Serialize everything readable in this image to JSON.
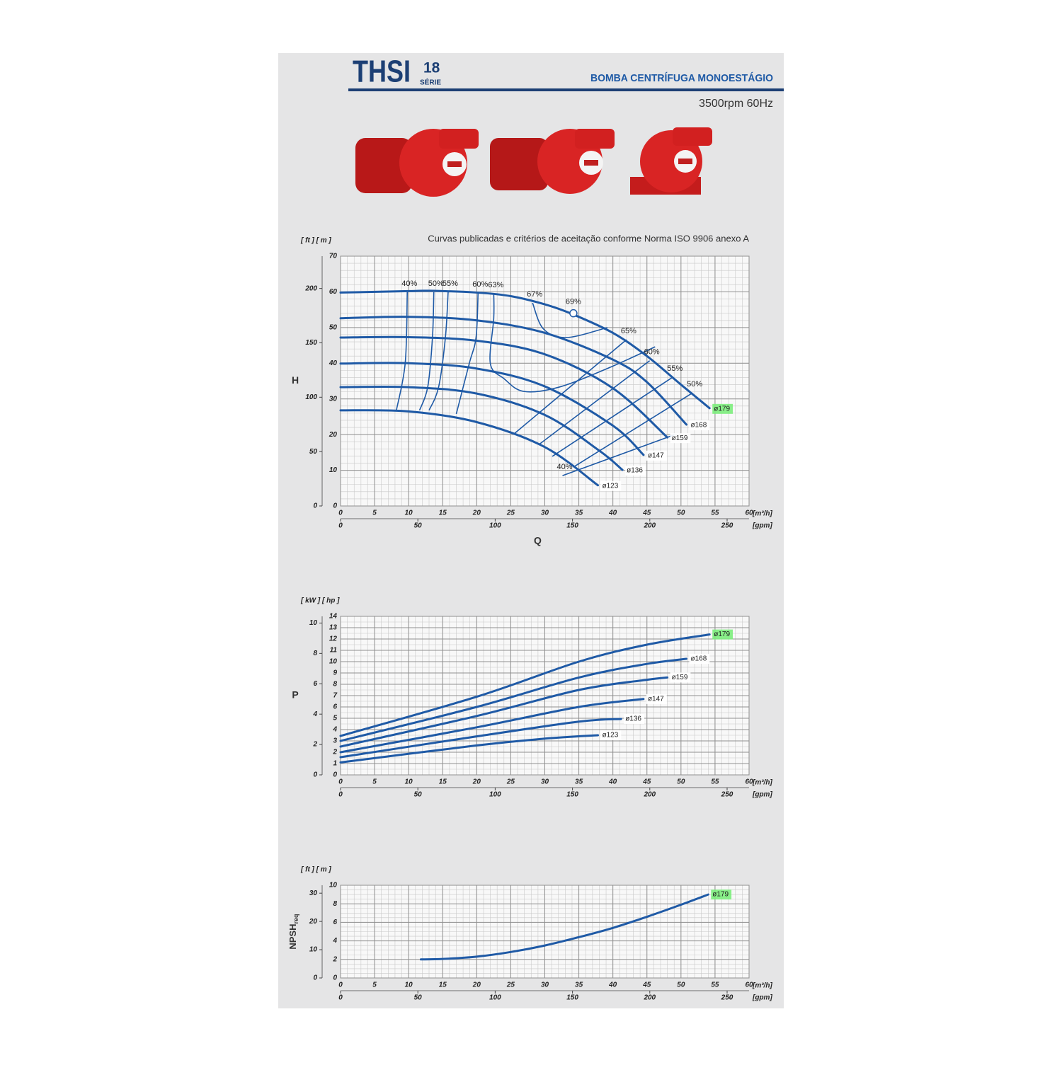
{
  "header": {
    "title": "THSI",
    "number": "18",
    "series_label": "SÉRIE",
    "subtitle": "BOMBA CENTRÍFUGA MONOESTÁGIO",
    "speed": "3500rpm 60Hz"
  },
  "chart_data": [
    {
      "type": "line",
      "note": "Curvas publicadas e critérios de aceitação conforme Norma ISO 9906 anexo A",
      "y_label": "H",
      "x_label": "Q",
      "y_units": "[ ft ] [ m ]",
      "x_unit": "[m³/h]",
      "x2_unit": "[gpm]",
      "xlim": [
        0,
        60
      ],
      "xticks": [
        0,
        5,
        10,
        15,
        20,
        25,
        30,
        35,
        40,
        45,
        50,
        55,
        60
      ],
      "ylim": [
        0,
        70
      ],
      "yticks": [
        0,
        10,
        20,
        30,
        40,
        50,
        60,
        70
      ],
      "x2lim": [
        0,
        264.2
      ],
      "x2ticks": [
        0,
        50,
        100,
        150,
        200,
        250
      ],
      "y2lim": [
        0,
        229.7
      ],
      "y2ticks": [
        0,
        50,
        100,
        150,
        200
      ],
      "grid": true,
      "xminor": 1,
      "yminor": 2,
      "highlight_color": "#7ced7c",
      "series": [
        {
          "name": "ø179",
          "color": "#1f5aa6",
          "highlight": true,
          "x": [
            0,
            10,
            13,
            20,
            25,
            30,
            34,
            40,
            45,
            50,
            54.2
          ],
          "values": [
            59.8,
            60.2,
            60.3,
            59.8,
            58.8,
            56.5,
            53.8,
            48.5,
            42,
            34,
            27.4
          ]
        },
        {
          "name": "ø168",
          "color": "#1f5aa6",
          "x": [
            0,
            10,
            20,
            30,
            40,
            45,
            50.8
          ],
          "values": [
            52.6,
            53,
            52,
            48.5,
            41,
            34.7,
            22.8
          ]
        },
        {
          "name": "ø159",
          "color": "#1f5aa6",
          "x": [
            0,
            10,
            20,
            30,
            40,
            48
          ],
          "values": [
            47.2,
            47.3,
            46.3,
            42.5,
            33,
            19.2
          ]
        },
        {
          "name": "ø147",
          "color": "#1f5aa6",
          "x": [
            0,
            10,
            20,
            30,
            40,
            44.5
          ],
          "values": [
            39.9,
            40,
            38.5,
            33.5,
            22.5,
            14.3
          ]
        },
        {
          "name": "ø136",
          "color": "#1f5aa6",
          "x": [
            0,
            10,
            20,
            30,
            38,
            41.4
          ],
          "values": [
            33.3,
            33.3,
            31.5,
            25.5,
            15.5,
            10.1
          ]
        },
        {
          "name": "ø123",
          "color": "#1f5aa6",
          "x": [
            0,
            10,
            20,
            30,
            37.8
          ],
          "values": [
            26.8,
            26.5,
            23.5,
            16.5,
            5.8
          ]
        }
      ],
      "efficiency_curves": [
        {
          "name": "40%",
          "x": [
            9.8,
            9.5,
            8.2
          ],
          "values": [
            59.9,
            40.1,
            26.8
          ]
        },
        {
          "name": "50%",
          "x": [
            13.7,
            13.5,
            12.8,
            11.6
          ],
          "values": [
            59.9,
            47.2,
            33.3,
            26.8
          ]
        },
        {
          "name": "55%",
          "x": [
            15.8,
            15.4,
            14.4,
            13
          ],
          "values": [
            59.9,
            47.2,
            33.3,
            26.8
          ]
        },
        {
          "name": "60%",
          "x": [
            20.2,
            19.9,
            18.9,
            17
          ],
          "values": [
            59.7,
            47.2,
            39.9,
            25.8
          ]
        },
        {
          "name": "63%",
          "x": [
            22.5,
            22.5,
            22,
            24,
            26.9,
            32.1,
            39.4,
            46.2
          ],
          "values": [
            59.5,
            52.6,
            39.9,
            35.7,
            32.1,
            33.3,
            38.7,
            44.6
          ]
        },
        {
          "name": "67%",
          "x": [
            28.2,
            29.8,
            33.2,
            39.2
          ],
          "values": [
            56.9,
            49.6,
            47.2,
            50
          ]
        },
        {
          "name": "65%",
          "x": [
            42,
            25.6
          ],
          "values": [
            46.6,
            20.4
          ]
        },
        {
          "name": "60%",
          "x": [
            45.4,
            29.2
          ],
          "values": [
            40.7,
            17.3
          ]
        },
        {
          "name": "55%",
          "x": [
            48.8,
            31.1
          ],
          "values": [
            36.1,
            13.9
          ]
        },
        {
          "name": "50%",
          "x": [
            51.7,
            34.2
          ],
          "values": [
            31.7,
            10.9
          ]
        },
        {
          "name": "40%",
          "x": [
            32.6,
            49.1
          ],
          "values": [
            8.5,
            20
          ]
        }
      ],
      "bep": {
        "name": "69%",
        "x": 34.2,
        "value": 54
      }
    },
    {
      "type": "line",
      "y_label": "P",
      "y_units": "[ kW ] [ hp ]",
      "x_unit": "[m³/h]",
      "x2_unit": "[gpm]",
      "xlim": [
        0,
        60
      ],
      "xticks": [
        0,
        5,
        10,
        15,
        20,
        25,
        30,
        35,
        40,
        45,
        50,
        55,
        60
      ],
      "ylim": [
        0,
        14
      ],
      "yticks": [
        0,
        1,
        2,
        3,
        4,
        5,
        6,
        7,
        8,
        9,
        10,
        11,
        12,
        13,
        14
      ],
      "x2lim": [
        0,
        264.2
      ],
      "x2ticks": [
        0,
        50,
        100,
        150,
        200,
        250
      ],
      "y2lim": [
        0,
        10.44
      ],
      "y2ticks": [
        0,
        2,
        4,
        6,
        8,
        10
      ],
      "grid": true,
      "xminor": 1,
      "yminor": 0.5,
      "highlight_color": "#7ced7c",
      "series": [
        {
          "name": "ø179",
          "color": "#1f5aa6",
          "highlight": true,
          "x": [
            0,
            20,
            35,
            45,
            54.2
          ],
          "values": [
            3.44,
            6.9,
            10,
            11.5,
            12.4
          ]
        },
        {
          "name": "ø168",
          "color": "#1f5aa6",
          "x": [
            0,
            20,
            35,
            45,
            50.8
          ],
          "values": [
            3,
            6,
            8.6,
            9.8,
            10.25
          ]
        },
        {
          "name": "ø159",
          "color": "#1f5aa6",
          "x": [
            0,
            20,
            35,
            45,
            48
          ],
          "values": [
            2.5,
            5.2,
            7.5,
            8.4,
            8.6
          ]
        },
        {
          "name": "ø147",
          "color": "#1f5aa6",
          "x": [
            0,
            20,
            35,
            44.5
          ],
          "values": [
            2,
            4.2,
            6,
            6.7
          ]
        },
        {
          "name": "ø136",
          "color": "#1f5aa6",
          "x": [
            0,
            20,
            35,
            41.2
          ],
          "values": [
            1.56,
            3.4,
            4.7,
            4.94
          ]
        },
        {
          "name": "ø123",
          "color": "#1f5aa6",
          "x": [
            0,
            20,
            30,
            37.8
          ],
          "values": [
            1.1,
            2.6,
            3.2,
            3.5
          ]
        }
      ]
    },
    {
      "type": "line",
      "y_label": "NPSH",
      "y_label_sub": "req",
      "y_units": "[ ft ] [ m ]",
      "x_unit": "[m³/h]",
      "x2_unit": "[gpm]",
      "xlim": [
        0,
        60
      ],
      "xticks": [
        0,
        5,
        10,
        15,
        20,
        25,
        30,
        35,
        40,
        45,
        50,
        55,
        60
      ],
      "ylim": [
        0,
        10
      ],
      "yticks": [
        0,
        2,
        4,
        6,
        8,
        10
      ],
      "x2lim": [
        0,
        264.2
      ],
      "x2ticks": [
        0,
        50,
        100,
        150,
        200,
        250
      ],
      "y2lim": [
        0,
        32.8
      ],
      "y2ticks": [
        0,
        10,
        20,
        30
      ],
      "grid": true,
      "xminor": 1,
      "yminor": 0.5,
      "highlight_color": "#7ced7c",
      "series": [
        {
          "name": "ø179",
          "color": "#1f5aa6",
          "highlight": true,
          "x": [
            11.8,
            15,
            20,
            25,
            30,
            35,
            40,
            45,
            50,
            54
          ],
          "values": [
            2,
            2.05,
            2.3,
            2.8,
            3.5,
            4.4,
            5.4,
            6.6,
            7.9,
            9
          ]
        }
      ]
    }
  ]
}
